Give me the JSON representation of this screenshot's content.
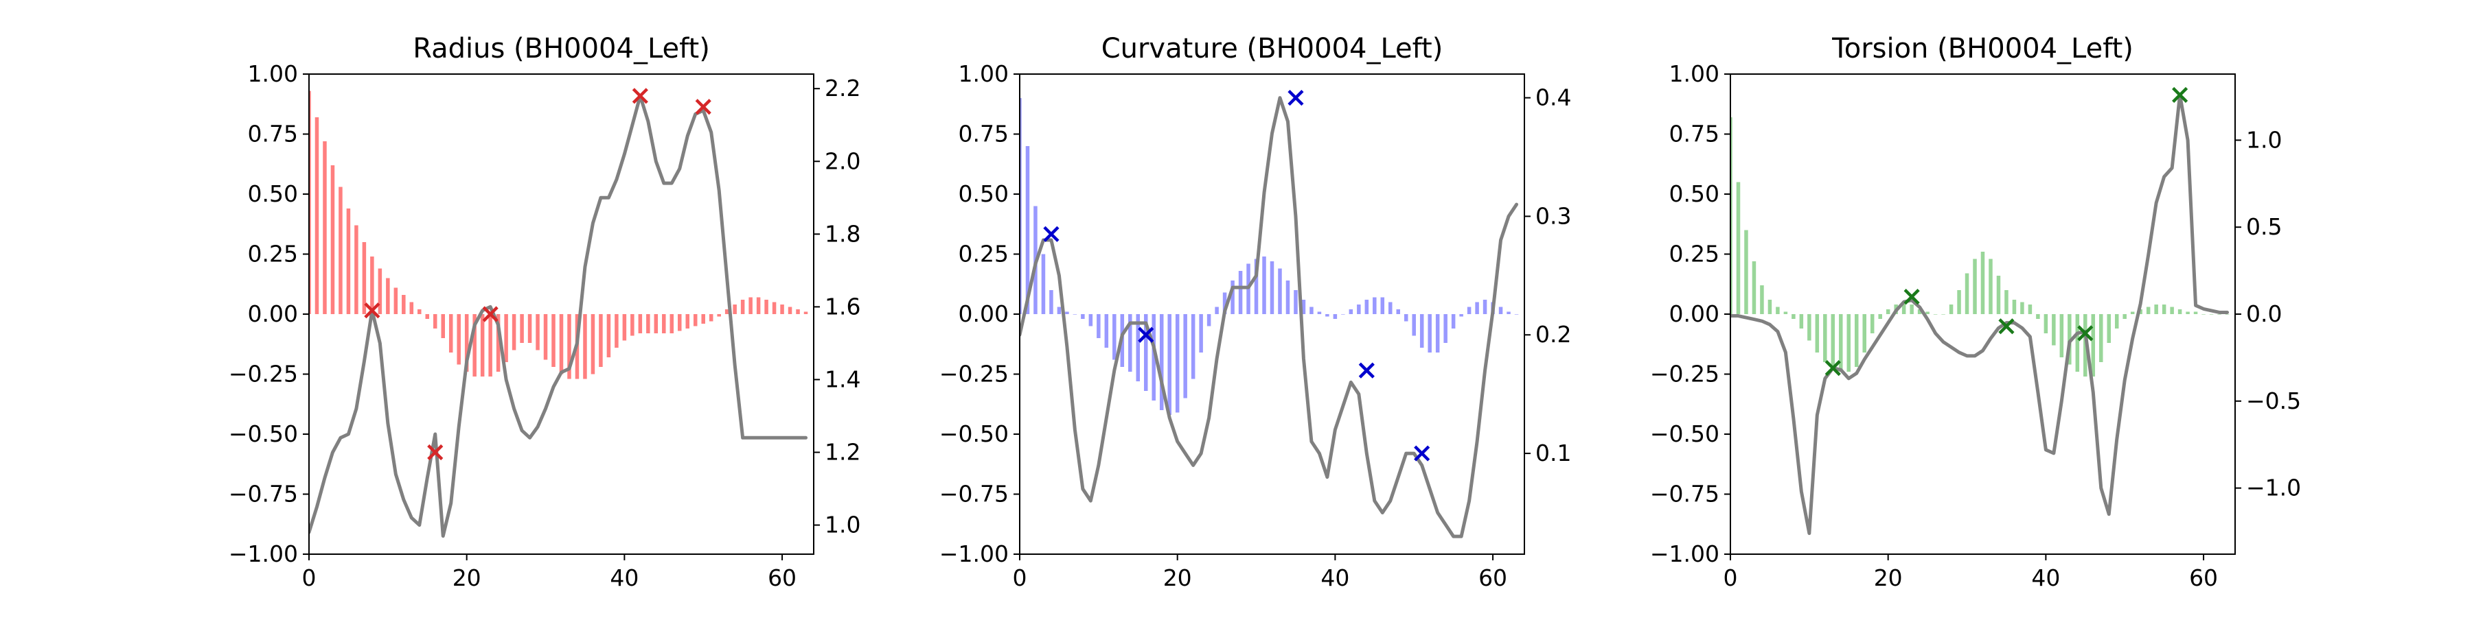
{
  "figure": {
    "background": "#ffffff",
    "mean_line_color": "#808080"
  },
  "chart_data": [
    {
      "type": "bar",
      "title": "Radius (BH0004_Left)",
      "bar_color": "#ff7f7f",
      "marker_color": "#d62728",
      "x_range": [
        0,
        64
      ],
      "x_ticks": [
        0,
        20,
        40,
        60
      ],
      "y_left_range": [
        -1.0,
        1.0
      ],
      "y_left_ticks": [
        "−1.00",
        "−0.75",
        "−0.50",
        "−0.25",
        "0.00",
        "0.25",
        "0.50",
        "0.75",
        "1.00"
      ],
      "y_right_range": [
        0.92,
        2.24
      ],
      "y_right_ticks": [
        "1.0",
        "1.2",
        "1.4",
        "1.6",
        "1.8",
        "2.0",
        "2.2"
      ],
      "bars": [
        0.93,
        0.82,
        0.72,
        0.62,
        0.53,
        0.44,
        0.37,
        0.3,
        0.24,
        0.19,
        0.15,
        0.11,
        0.08,
        0.05,
        0.02,
        -0.02,
        -0.06,
        -0.1,
        -0.16,
        -0.21,
        -0.24,
        -0.26,
        -0.26,
        -0.26,
        -0.24,
        -0.2,
        -0.15,
        -0.12,
        -0.12,
        -0.15,
        -0.19,
        -0.22,
        -0.25,
        -0.27,
        -0.27,
        -0.27,
        -0.25,
        -0.22,
        -0.18,
        -0.14,
        -0.11,
        -0.09,
        -0.08,
        -0.08,
        -0.08,
        -0.08,
        -0.08,
        -0.07,
        -0.06,
        -0.05,
        -0.04,
        -0.03,
        -0.01,
        0.02,
        0.04,
        0.06,
        0.07,
        0.07,
        0.06,
        0.05,
        0.04,
        0.03,
        0.02,
        0.01
      ],
      "line": [
        0.98,
        1.05,
        1.13,
        1.2,
        1.24,
        1.25,
        1.32,
        1.45,
        1.59,
        1.5,
        1.28,
        1.14,
        1.07,
        1.02,
        1.0,
        1.13,
        1.25,
        0.97,
        1.06,
        1.27,
        1.45,
        1.55,
        1.59,
        1.6,
        1.55,
        1.4,
        1.32,
        1.26,
        1.24,
        1.27,
        1.32,
        1.38,
        1.42,
        1.43,
        1.5,
        1.71,
        1.83,
        1.9,
        1.9,
        1.95,
        2.02,
        2.1,
        2.18,
        2.11,
        2.0,
        1.94,
        1.94,
        1.98,
        2.07,
        2.13,
        2.14,
        2.08,
        1.92,
        1.68,
        1.44,
        1.24,
        1.24,
        1.24,
        1.24,
        1.24,
        1.24,
        1.24,
        1.24,
        1.24
      ],
      "markers": [
        {
          "x": 8,
          "y": 1.59
        },
        {
          "x": 16,
          "y": 1.2
        },
        {
          "x": 23,
          "y": 1.58
        },
        {
          "x": 42,
          "y": 2.18
        },
        {
          "x": 50,
          "y": 2.15
        }
      ]
    },
    {
      "type": "bar",
      "title": "Curvature (BH0004_Left)",
      "bar_color": "#9999ff",
      "marker_color": "#0000cd",
      "x_range": [
        0,
        64
      ],
      "x_ticks": [
        0,
        20,
        40,
        60
      ],
      "y_left_range": [
        -1.0,
        1.0
      ],
      "y_left_ticks": [
        "−1.00",
        "−0.75",
        "−0.50",
        "−0.25",
        "0.00",
        "0.25",
        "0.50",
        "0.75",
        "1.00"
      ],
      "y_right_range": [
        0.015,
        0.42
      ],
      "y_right_ticks": [
        "0.1",
        "0.2",
        "0.3",
        "0.4"
      ],
      "bars": [
        0.9,
        0.7,
        0.45,
        0.25,
        0.1,
        0.03,
        0.01,
        0.0,
        -0.02,
        -0.05,
        -0.1,
        -0.14,
        -0.19,
        -0.22,
        -0.24,
        -0.28,
        -0.32,
        -0.36,
        -0.4,
        -0.42,
        -0.41,
        -0.35,
        -0.27,
        -0.16,
        -0.05,
        0.03,
        0.09,
        0.14,
        0.18,
        0.21,
        0.23,
        0.24,
        0.22,
        0.19,
        0.14,
        0.1,
        0.06,
        0.03,
        0.01,
        -0.01,
        -0.02,
        0.0,
        0.02,
        0.04,
        0.06,
        0.07,
        0.07,
        0.05,
        0.02,
        -0.03,
        -0.09,
        -0.14,
        -0.16,
        -0.16,
        -0.12,
        -0.06,
        -0.01,
        0.03,
        0.05,
        0.06,
        0.05,
        0.03,
        0.01,
        0.0
      ],
      "line": [
        0.2,
        0.23,
        0.26,
        0.28,
        0.28,
        0.25,
        0.19,
        0.12,
        0.07,
        0.06,
        0.09,
        0.13,
        0.17,
        0.2,
        0.21,
        0.21,
        0.21,
        0.19,
        0.16,
        0.13,
        0.11,
        0.1,
        0.09,
        0.1,
        0.13,
        0.18,
        0.22,
        0.24,
        0.24,
        0.24,
        0.25,
        0.32,
        0.37,
        0.4,
        0.38,
        0.3,
        0.18,
        0.11,
        0.1,
        0.08,
        0.12,
        0.14,
        0.16,
        0.15,
        0.1,
        0.06,
        0.05,
        0.06,
        0.08,
        0.1,
        0.1,
        0.09,
        0.07,
        0.05,
        0.04,
        0.03,
        0.03,
        0.06,
        0.11,
        0.17,
        0.22,
        0.28,
        0.3,
        0.31
      ],
      "markers": [
        {
          "x": 4,
          "y": 0.285
        },
        {
          "x": 16,
          "y": 0.2
        },
        {
          "x": 35,
          "y": 0.4
        },
        {
          "x": 44,
          "y": 0.17
        },
        {
          "x": 51,
          "y": 0.1
        }
      ]
    },
    {
      "type": "bar",
      "title": "Torsion (BH0004_Left)",
      "bar_color": "#99d699",
      "marker_color": "#1a7a1a",
      "x_range": [
        0,
        64
      ],
      "x_ticks": [
        0,
        20,
        40,
        60
      ],
      "y_left_range": [
        -1.0,
        1.0
      ],
      "y_left_ticks": [
        "−1.00",
        "−0.75",
        "−0.50",
        "−0.25",
        "0.00",
        "0.25",
        "0.50",
        "0.75",
        "1.00"
      ],
      "y_right_range": [
        -1.38,
        1.38
      ],
      "y_right_ticks": [
        "−1.0",
        "−0.5",
        "0.0",
        "0.5",
        "1.0"
      ],
      "bars": [
        0.82,
        0.55,
        0.35,
        0.22,
        0.12,
        0.06,
        0.03,
        0.01,
        -0.02,
        -0.06,
        -0.11,
        -0.16,
        -0.2,
        -0.23,
        -0.24,
        -0.24,
        -0.22,
        -0.16,
        -0.08,
        -0.02,
        0.02,
        0.04,
        0.05,
        0.04,
        0.02,
        0.01,
        0.0,
        0.0,
        0.04,
        0.1,
        0.17,
        0.23,
        0.26,
        0.23,
        0.16,
        0.1,
        0.06,
        0.05,
        0.04,
        -0.02,
        -0.08,
        -0.13,
        -0.18,
        -0.21,
        -0.24,
        -0.26,
        -0.26,
        -0.2,
        -0.12,
        -0.06,
        -0.02,
        0.01,
        0.02,
        0.03,
        0.04,
        0.04,
        0.03,
        0.02,
        0.01,
        0.01,
        0.0,
        0.0,
        0.0,
        0.0
      ],
      "line": [
        -0.01,
        -0.01,
        -0.02,
        -0.03,
        -0.04,
        -0.06,
        -0.1,
        -0.22,
        -0.6,
        -1.02,
        -1.26,
        -0.58,
        -0.37,
        -0.31,
        -0.32,
        -0.37,
        -0.34,
        -0.26,
        -0.19,
        -0.12,
        -0.05,
        0.02,
        0.07,
        0.08,
        0.04,
        -0.03,
        -0.11,
        -0.16,
        -0.19,
        -0.22,
        -0.24,
        -0.24,
        -0.21,
        -0.14,
        -0.08,
        -0.05,
        -0.05,
        -0.08,
        -0.13,
        -0.45,
        -0.78,
        -0.8,
        -0.5,
        -0.16,
        -0.11,
        -0.1,
        -0.45,
        -1.0,
        -1.15,
        -0.72,
        -0.38,
        -0.14,
        0.06,
        0.34,
        0.64,
        0.79,
        0.84,
        1.26,
        1.0,
        0.05,
        0.03,
        0.02,
        0.01,
        0.01
      ],
      "markers": [
        {
          "x": 13,
          "y": -0.31
        },
        {
          "x": 23,
          "y": 0.1
        },
        {
          "x": 35,
          "y": -0.07
        },
        {
          "x": 45,
          "y": -0.11
        },
        {
          "x": 57,
          "y": 1.26
        }
      ]
    }
  ]
}
